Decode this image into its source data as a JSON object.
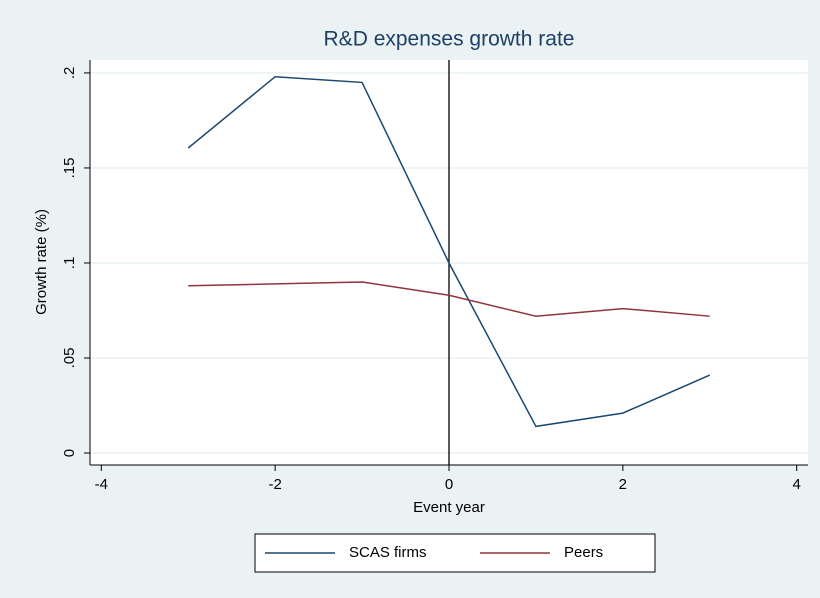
{
  "chart_data": {
    "type": "line",
    "title": "R&D expenses growth rate",
    "x_label": "Event year",
    "y_label": "Growth rate (%)",
    "x": [
      -3,
      -2,
      -1,
      0,
      1,
      2,
      3
    ],
    "series": [
      {
        "name": "SCAS firms",
        "color": "#1a476f",
        "values": [
          0.1605,
          0.198,
          0.195,
          0.1,
          0.014,
          0.021,
          0.041
        ]
      },
      {
        "name": "Peers",
        "color": "#90353b",
        "values": [
          0.088,
          0.089,
          0.09,
          0.083,
          0.072,
          0.076,
          0.072
        ]
      }
    ],
    "xlim": [
      -4.13,
      4.13
    ],
    "xticks": [
      -4,
      -2,
      0,
      2,
      4
    ],
    "ylim": [
      -0.0063,
      0.2068
    ],
    "yticks": [
      0,
      {
        "value": 0.05,
        "label": ".05"
      },
      {
        "value": 0.1,
        "label": ".1"
      },
      {
        "value": 0.15,
        "label": ".15"
      },
      {
        "value": 0.2,
        "label": ".2"
      }
    ],
    "grid": true,
    "xline": 0,
    "legend": "bottom"
  }
}
